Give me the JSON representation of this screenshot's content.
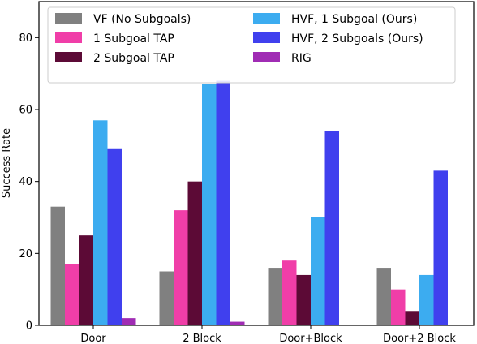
{
  "chart_data": {
    "type": "bar",
    "categories": [
      "Door",
      "2 Block",
      "Door+Block",
      "Door+2 Block"
    ],
    "series": [
      {
        "name": "VF (No Subgoals)",
        "color": "#808080",
        "values": [
          33,
          15,
          16,
          16
        ]
      },
      {
        "name": "1 Subgoal TAP",
        "color": "#f03ea8",
        "values": [
          17,
          32,
          18,
          10
        ]
      },
      {
        "name": "2 Subgoal TAP",
        "color": "#5c0a36",
        "values": [
          25,
          40,
          14,
          4
        ]
      },
      {
        "name": "HVF, 1 Subgoal (Ours)",
        "color": "#3cacf0",
        "values": [
          57,
          67,
          30,
          14
        ]
      },
      {
        "name": "HVF, 2 Subgoals (Ours)",
        "color": "#4040ee",
        "values": [
          49,
          68,
          54,
          43
        ]
      },
      {
        "name": "RIG",
        "color": "#a02cb4",
        "values": [
          2,
          1,
          0,
          0
        ]
      }
    ],
    "xlabel": "",
    "ylabel": "Success Rate",
    "ylim": [
      0,
      90
    ],
    "yticks": [
      0,
      20,
      40,
      60,
      80
    ],
    "grid": false,
    "legend": {
      "placement": "top",
      "columns": 2
    }
  }
}
